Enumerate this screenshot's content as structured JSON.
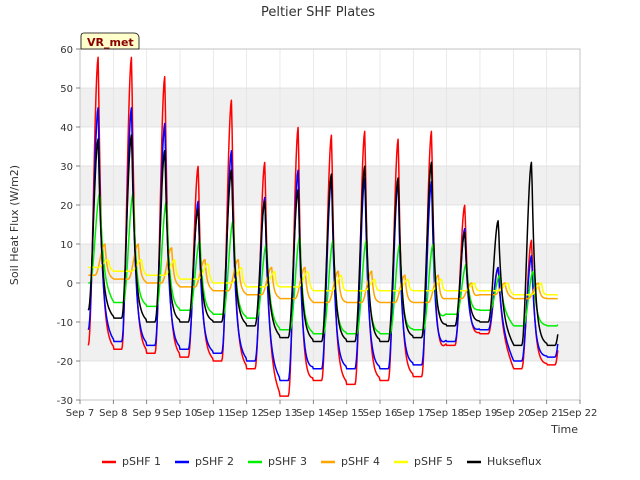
{
  "chart_data": {
    "type": "line",
    "title": "Peltier SHF Plates",
    "xlabel": "Time",
    "ylabel": "Soil Heat Flux (W/m2)",
    "badge": "VR_met",
    "ylim": [
      -30,
      60
    ],
    "yticks": [
      -30,
      -20,
      -10,
      0,
      10,
      20,
      30,
      40,
      50,
      60
    ],
    "xlim": [
      7,
      22
    ],
    "xticks": [
      {
        "value": 7,
        "label": "Sep 7"
      },
      {
        "value": 8,
        "label": "Sep 8"
      },
      {
        "value": 9,
        "label": "Sep 9"
      },
      {
        "value": 10,
        "label": "Sep 10"
      },
      {
        "value": 11,
        "label": "Sep 11"
      },
      {
        "value": 12,
        "label": "Sep 12"
      },
      {
        "value": 13,
        "label": "Sep 13"
      },
      {
        "value": 14,
        "label": "Sep 14"
      },
      {
        "value": 15,
        "label": "Sep 15"
      },
      {
        "value": 16,
        "label": "Sep 16"
      },
      {
        "value": 17,
        "label": "Sep 17"
      },
      {
        "value": 18,
        "label": "Sep 18"
      },
      {
        "value": 19,
        "label": "Sep 19"
      },
      {
        "value": 20,
        "label": "Sep 20"
      },
      {
        "value": 21,
        "label": "Sep 21"
      },
      {
        "value": 22,
        "label": "Sep 22"
      }
    ],
    "grid": true,
    "legend_position": "bottom",
    "days": [
      7,
      8,
      9,
      10,
      11,
      12,
      13,
      14,
      15,
      16,
      17,
      18,
      19,
      20,
      21
    ],
    "series": [
      {
        "name": "pSHF 1",
        "color": "#ff0000",
        "peak_time": 0.55,
        "start": 7.25,
        "end": 21.35,
        "max": [
          58,
          58,
          53,
          30,
          47,
          31,
          40,
          38,
          39,
          37,
          39,
          20,
          4,
          11,
          0
        ],
        "min": [
          -16,
          -17,
          -18,
          -19,
          -20,
          -22,
          -29,
          -25,
          -26,
          -25,
          -24,
          -16,
          -13,
          -22,
          -21
        ]
      },
      {
        "name": "pSHF 2",
        "color": "#0000ff",
        "peak_time": 0.55,
        "start": 7.25,
        "end": 21.35,
        "max": [
          45,
          45,
          41,
          21,
          34,
          22,
          29,
          27,
          27,
          26,
          26,
          14,
          4,
          7,
          0
        ],
        "min": [
          -12,
          -15,
          -16,
          -17,
          -18,
          -20,
          -25,
          -22,
          -22,
          -22,
          -21,
          -15,
          -12,
          -20,
          -19
        ]
      },
      {
        "name": "pSHF 3",
        "color": "#00ee00",
        "peak_time": 0.6,
        "start": 7.25,
        "end": 21.35,
        "max": [
          23,
          23,
          21,
          11,
          16,
          10,
          12,
          11,
          11,
          10,
          10,
          5,
          2,
          3,
          0
        ],
        "min": [
          0,
          -5,
          -6,
          -7,
          -8,
          -9,
          -12,
          -13,
          -13,
          -13,
          -12,
          -8,
          -7,
          -11,
          -11
        ]
      },
      {
        "name": "pSHF 4",
        "color": "#ffa500",
        "peak_time": 0.75,
        "start": 7.25,
        "end": 21.35,
        "max": [
          10,
          10,
          9,
          6,
          6,
          4,
          4,
          3,
          3,
          2,
          2,
          0,
          0,
          0,
          -1
        ],
        "min": [
          2,
          1,
          0,
          -1,
          -2,
          -3,
          -4,
          -5,
          -5,
          -5,
          -5,
          -4,
          -3,
          -4,
          -4
        ]
      },
      {
        "name": "pSHF 5",
        "color": "#ffff00",
        "peak_time": 0.85,
        "start": 7.25,
        "end": 21.35,
        "max": [
          6,
          6,
          6,
          5,
          4,
          3,
          3,
          2,
          1,
          1,
          1,
          0,
          0,
          0,
          -1
        ],
        "min": [
          4,
          3,
          2,
          1,
          0,
          -1,
          -1,
          -2,
          -2,
          -2,
          -2,
          -2,
          -2,
          -3,
          -3
        ]
      },
      {
        "name": "Hukseflux",
        "color": "#000000",
        "peak_time": 0.55,
        "start": 7.25,
        "end": 21.35,
        "max": [
          37,
          38,
          34,
          19,
          29,
          21,
          24,
          28,
          30,
          27,
          31,
          13,
          16,
          31,
          0
        ],
        "min": [
          -7,
          -9,
          -10,
          -10,
          -10,
          -11,
          -14,
          -15,
          -15,
          -15,
          -14,
          -11,
          -10,
          -16,
          -16
        ]
      }
    ]
  }
}
